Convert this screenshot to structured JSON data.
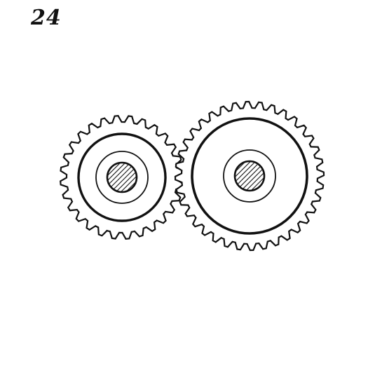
{
  "figure_number": "24",
  "colors": {
    "ink": "#111111",
    "paper": "#ffffff"
  },
  "gears": [
    {
      "name": "small-gear",
      "teeth": 28,
      "hub_hatched": true
    },
    {
      "name": "large-gear",
      "teeth": 36,
      "hub_hatched": true
    }
  ]
}
